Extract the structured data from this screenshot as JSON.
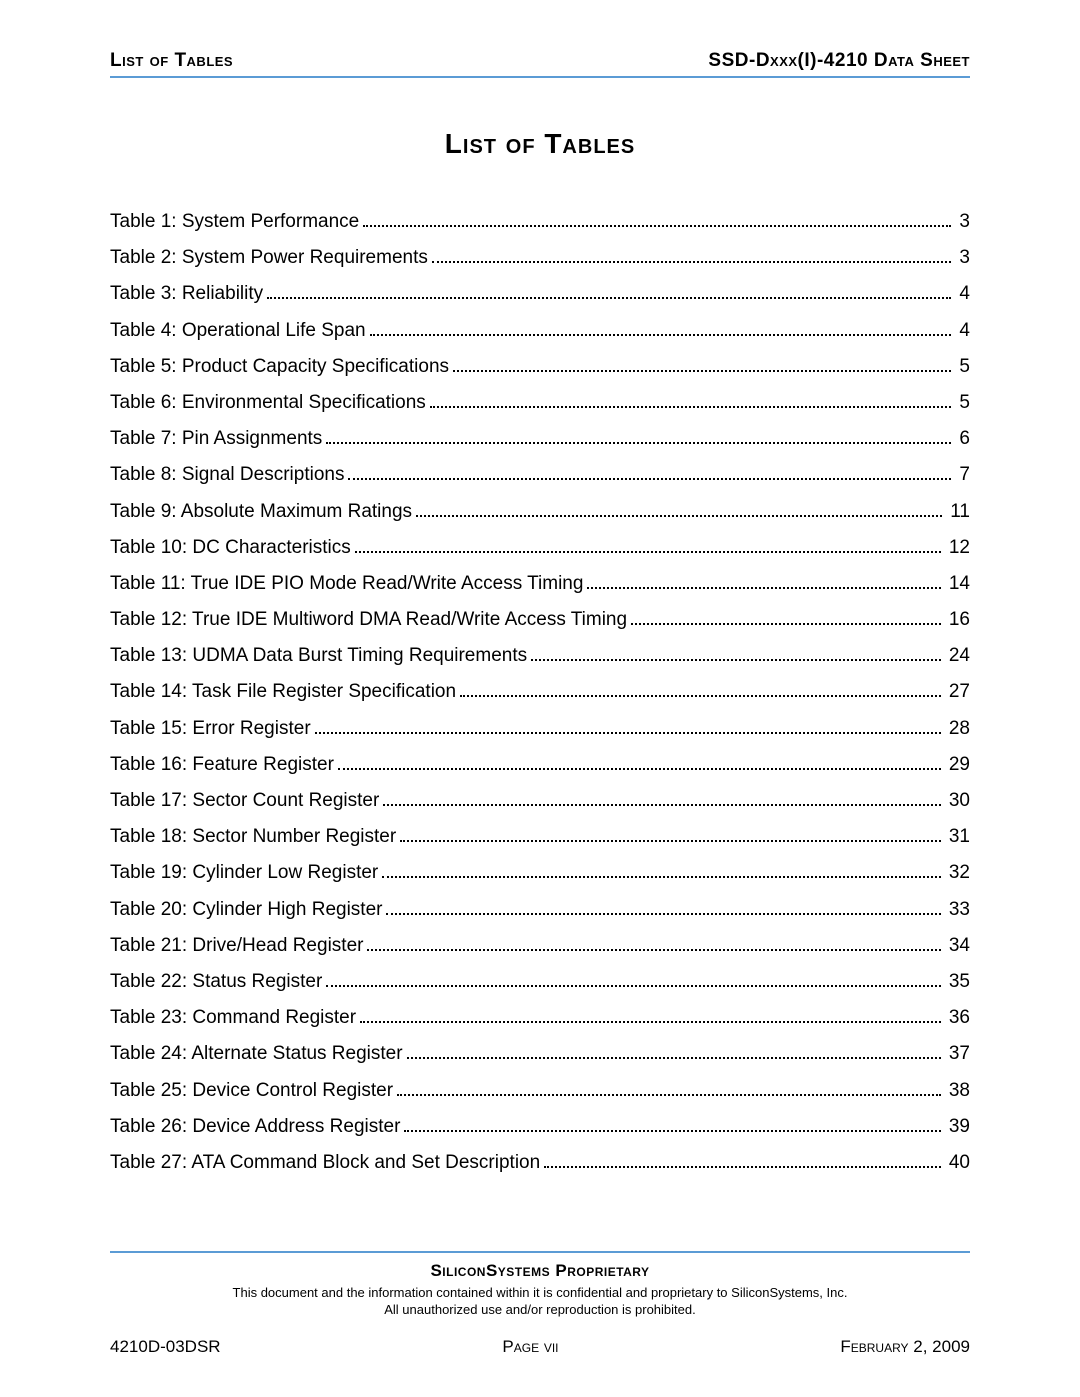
{
  "header": {
    "left": "List of Tables",
    "right": "SSD-Dxxx(I)-4210 Data Sheet"
  },
  "title": "List of Tables",
  "toc": [
    {
      "label": "Table 1: System Performance",
      "page": "3"
    },
    {
      "label": "Table 2: System Power Requirements",
      "page": "3"
    },
    {
      "label": "Table 3: Reliability",
      "page": "4"
    },
    {
      "label": "Table 4: Operational Life Span",
      "page": "4"
    },
    {
      "label": "Table 5: Product Capacity Specifications",
      "page": "5"
    },
    {
      "label": "Table 6: Environmental Specifications",
      "page": "5"
    },
    {
      "label": "Table 7: Pin Assignments",
      "page": "6"
    },
    {
      "label": "Table 8: Signal Descriptions",
      "page": "7"
    },
    {
      "label": "Table 9: Absolute Maximum Ratings",
      "page": "11"
    },
    {
      "label": "Table 10: DC Characteristics",
      "page": "12"
    },
    {
      "label": "Table 11: True IDE PIO Mode Read/Write Access Timing",
      "page": "14"
    },
    {
      "label": "Table 12: True IDE Multiword DMA Read/Write Access Timing",
      "page": "16"
    },
    {
      "label": "Table 13: UDMA Data Burst Timing Requirements",
      "page": "24"
    },
    {
      "label": "Table 14: Task File Register Specification",
      "page": "27"
    },
    {
      "label": "Table 15: Error Register",
      "page": "28"
    },
    {
      "label": "Table 16: Feature Register",
      "page": "29"
    },
    {
      "label": "Table 17: Sector Count Register",
      "page": "30"
    },
    {
      "label": "Table 18: Sector Number Register",
      "page": "31"
    },
    {
      "label": "Table 19: Cylinder Low Register",
      "page": "32"
    },
    {
      "label": "Table 20: Cylinder High Register",
      "page": "33"
    },
    {
      "label": "Table 21: Drive/Head Register",
      "page": "34"
    },
    {
      "label": "Table 22: Status Register",
      "page": "35"
    },
    {
      "label": "Table 23: Command Register",
      "page": "36"
    },
    {
      "label": "Table 24: Alternate Status Register",
      "page": "37"
    },
    {
      "label": "Table 25: Device Control Register",
      "page": "38"
    },
    {
      "label": "Table 26: Device Address Register",
      "page": "39"
    },
    {
      "label": "Table 27: ATA Command Block and Set Description",
      "page": "40"
    }
  ],
  "footer": {
    "proprietary_title": "SiliconSystems Proprietary",
    "disclaimer_line1": "This document and the information contained within it is confidential and proprietary to SiliconSystems, Inc.",
    "disclaimer_line2": "All unauthorized use and/or reproduction is prohibited.",
    "doc_id": "4210D-03DSR",
    "page_label": "Page vii",
    "date": "February 2, 2009"
  },
  "colors": {
    "rule": "#5b9bd5",
    "text": "#000000",
    "background": "#ffffff"
  },
  "typography": {
    "body_font": "Arial",
    "header_size_pt": 14,
    "title_size_pt": 21,
    "toc_size_pt": 14,
    "footer_title_size_pt": 13,
    "footer_disclaimer_size_pt": 10,
    "footer_bottom_size_pt": 13
  }
}
